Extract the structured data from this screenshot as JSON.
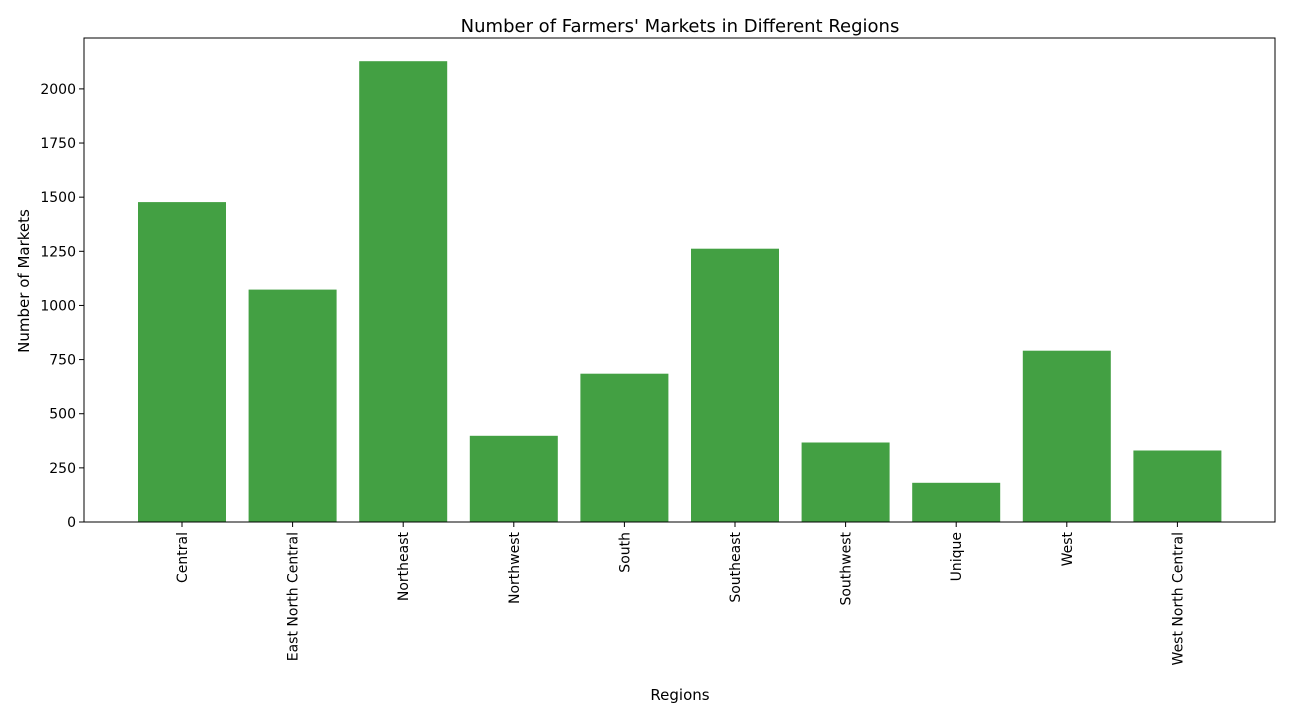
{
  "chart_data": {
    "type": "bar",
    "title": "Number of Farmers' Markets in Different Regions",
    "xlabel": "Regions",
    "ylabel": "Number of Markets",
    "categories": [
      "Central",
      "East North Central",
      "Northeast",
      "Northwest",
      "South",
      "Southeast",
      "Southwest",
      "Unique",
      "West",
      "West North Central"
    ],
    "values": [
      1477,
      1073,
      2128,
      398,
      685,
      1262,
      367,
      181,
      791,
      330
    ],
    "ylim": [
      0,
      2235
    ],
    "yticks": [
      0,
      250,
      500,
      750,
      1000,
      1250,
      1500,
      1750,
      2000
    ],
    "grid": false,
    "bar_color": "#43a043"
  }
}
